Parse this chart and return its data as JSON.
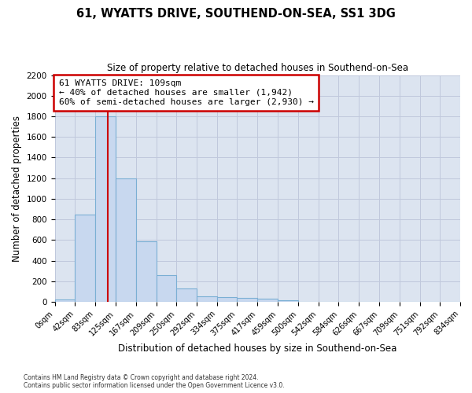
{
  "title": "61, WYATTS DRIVE, SOUTHEND-ON-SEA, SS1 3DG",
  "subtitle": "Size of property relative to detached houses in Southend-on-Sea",
  "xlabel": "Distribution of detached houses by size in Southend-on-Sea",
  "ylabel": "Number of detached properties",
  "bin_edges": [
    0,
    42,
    83,
    125,
    167,
    209,
    250,
    292,
    334,
    375,
    417,
    459,
    500,
    542,
    584,
    626,
    667,
    709,
    751,
    792,
    834
  ],
  "bar_heights": [
    25,
    845,
    1800,
    1200,
    590,
    260,
    130,
    50,
    45,
    35,
    28,
    15,
    0,
    0,
    0,
    0,
    0,
    0,
    0,
    0
  ],
  "bar_color": "#c8d8ef",
  "bar_edge_color": "#7bafd4",
  "property_size": 109,
  "vline_color": "#cc0000",
  "annotation_line1": "61 WYATTS DRIVE: 109sqm",
  "annotation_line2": "← 40% of detached houses are smaller (1,942)",
  "annotation_line3": "60% of semi-detached houses are larger (2,930) →",
  "annotation_box_color": "#ffffff",
  "annotation_box_edge": "#cc0000",
  "grid_color": "#c0c8dc",
  "bg_color": "#dce4f0",
  "fig_bg_color": "#ffffff",
  "ylim": [
    0,
    2200
  ],
  "yticks": [
    0,
    200,
    400,
    600,
    800,
    1000,
    1200,
    1400,
    1600,
    1800,
    2000,
    2200
  ],
  "footer_line1": "Contains HM Land Registry data © Crown copyright and database right 2024.",
  "footer_line2": "Contains public sector information licensed under the Open Government Licence v3.0."
}
